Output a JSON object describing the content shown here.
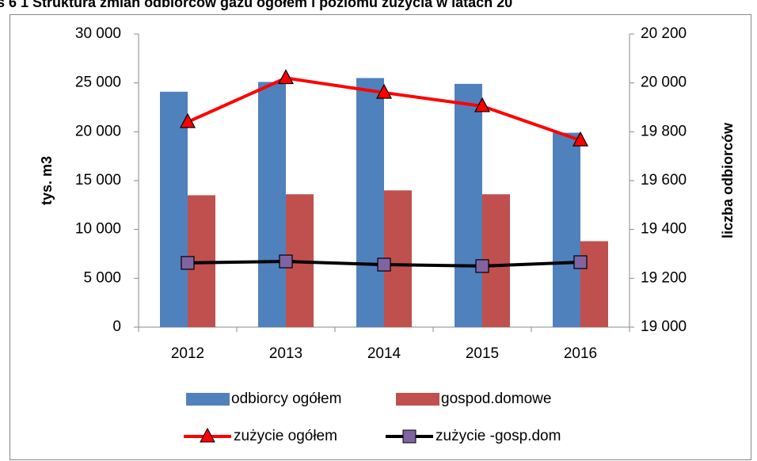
{
  "chart_data": {
    "type": "bar-line",
    "title": "s 6 1 Struktura zmian odbiorców gazu ogółem i poziomu zużycia w latach 20",
    "ylabel": "tys. m3",
    "y2label": "liczba odbiorców",
    "categories": [
      "2012",
      "2013",
      "2014",
      "2015",
      "2016"
    ],
    "series": [
      {
        "name": "odbiorcy ogółem",
        "type": "bar",
        "color": "#4f81bd",
        "values": [
          24100,
          25100,
          25500,
          24900,
          19900
        ]
      },
      {
        "name": "gospod.domowe",
        "type": "bar",
        "color": "#c0504d",
        "values": [
          13500,
          13600,
          14000,
          13600,
          8800
        ]
      },
      {
        "name": "zużycie ogółem",
        "type": "line",
        "axis": "y2",
        "color": "#ff0000",
        "marker": "triangle",
        "marker_color": "#ff0000",
        "values": [
          19840,
          20020,
          19960,
          19905,
          19765
        ]
      },
      {
        "name": "zużycie -gosp.dom",
        "type": "line",
        "axis": "y2",
        "color": "#000000",
        "marker": "square",
        "marker_color": "#8064a2",
        "values": [
          19263,
          19269,
          19256,
          19250,
          19266
        ]
      }
    ],
    "ylim": [
      0,
      30000
    ],
    "yticks": [
      0,
      {
        "value": 5000,
        "label": "5 000"
      },
      {
        "value": 10000,
        "label": "10 000"
      },
      {
        "value": 15000,
        "label": "15 000"
      },
      {
        "value": 20000,
        "label": "20 000"
      },
      {
        "value": 25000,
        "label": "25 000"
      },
      {
        "value": 30000,
        "label": "30 000"
      }
    ],
    "y2lim": [
      19000,
      20200
    ],
    "y2ticks": [
      {
        "value": 19000,
        "label": "19 000"
      },
      {
        "value": 19200,
        "label": "19 200"
      },
      {
        "value": 19400,
        "label": "19 400"
      },
      {
        "value": 19600,
        "label": "19 600"
      },
      {
        "value": 19800,
        "label": "19 800"
      },
      {
        "value": 20000,
        "label": "20 000"
      },
      {
        "value": 20200,
        "label": "20 200"
      }
    ],
    "grid": false
  }
}
